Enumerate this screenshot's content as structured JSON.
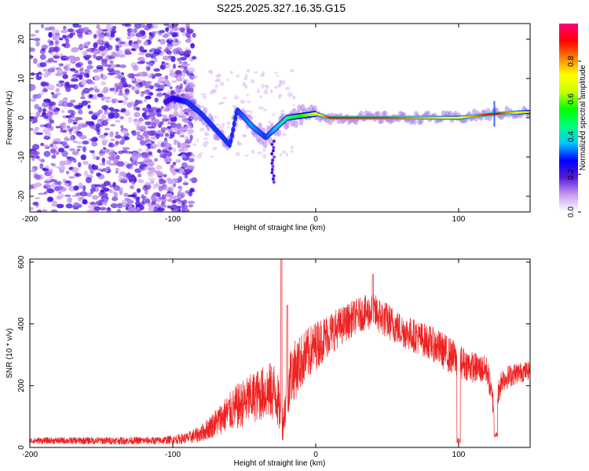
{
  "title": "S225.2025.327.16.35.G15",
  "chart_data": [
    {
      "type": "heatmap",
      "name": "spectrogram",
      "xlabel": "Height of straight line (km)",
      "ylabel": "Frequency (Hz)",
      "xlim": [
        -200,
        150
      ],
      "ylim": [
        -24,
        24
      ],
      "xticks": [
        -200,
        -100,
        0,
        100
      ],
      "xtick_labels": [
        "-200",
        "-100",
        "0",
        "100"
      ],
      "yticks": [
        -20,
        -10,
        0,
        10,
        20
      ],
      "ytick_labels": [
        "-20",
        "-10",
        "0",
        "10",
        "20"
      ],
      "colorbar": {
        "label": "Normalized spectral amplitude",
        "range": [
          0,
          1
        ],
        "ticks": [
          0.0,
          0.2,
          0.4,
          0.6,
          0.8
        ],
        "tick_labels": [
          "0.0",
          "0.2",
          "0.4",
          "0.6",
          "0.8"
        ],
        "colormap": [
          "#ffffff",
          "#c89cf0",
          "#5a1adc",
          "#0000ff",
          "#00c8ff",
          "#00ff80",
          "#00ff00",
          "#c8ff00",
          "#ffff00",
          "#ff8000",
          "#ff0000",
          "#ff0080"
        ]
      },
      "ridge": [
        {
          "x": -105,
          "y": 4,
          "amp": 0.2
        },
        {
          "x": -100,
          "y": 5,
          "amp": 0.25
        },
        {
          "x": -90,
          "y": 4,
          "amp": 0.3
        },
        {
          "x": -80,
          "y": 1,
          "amp": 0.3
        },
        {
          "x": -70,
          "y": -3,
          "amp": 0.3
        },
        {
          "x": -60,
          "y": -7,
          "amp": 0.3
        },
        {
          "x": -55,
          "y": 2,
          "amp": 0.3
        },
        {
          "x": -45,
          "y": -2,
          "amp": 0.35
        },
        {
          "x": -35,
          "y": -5,
          "amp": 0.3
        },
        {
          "x": -20,
          "y": 0,
          "amp": 0.45
        },
        {
          "x": -10,
          "y": 0.5,
          "amp": 0.55
        },
        {
          "x": 0,
          "y": 1,
          "amp": 0.65
        },
        {
          "x": 10,
          "y": 0,
          "amp": 0.9
        },
        {
          "x": 50,
          "y": 0,
          "amp": 0.88
        },
        {
          "x": 100,
          "y": 0,
          "amp": 0.7
        },
        {
          "x": 125,
          "y": 1,
          "amp": 0.95
        },
        {
          "x": 150,
          "y": 1.5,
          "amp": 0.6
        }
      ],
      "noise_region": {
        "x_from": -200,
        "x_to": -85,
        "level": "scattered low-amplitude purple noise"
      }
    },
    {
      "type": "line",
      "name": "snr",
      "xlabel": "Height of straight line (km)",
      "ylabel": "SNR (10 * v/v)",
      "xlim": [
        -200,
        150
      ],
      "ylim": [
        0,
        610
      ],
      "xticks": [
        -200,
        -100,
        0,
        100
      ],
      "xtick_labels": [
        "-200",
        "-100",
        "0",
        "100"
      ],
      "yticks": [
        0,
        200,
        400,
        600
      ],
      "ytick_labels": [
        "0",
        "200",
        "400",
        "600"
      ],
      "color": "#ee2222",
      "envelope": {
        "x": [
          -200,
          -150,
          -110,
          -100,
          -90,
          -80,
          -70,
          -62,
          -55,
          -45,
          -35,
          -28,
          -23,
          -18,
          -10,
          0,
          10,
          20,
          30,
          40,
          50,
          60,
          70,
          80,
          90,
          100,
          110,
          120,
          125,
          130,
          140,
          150
        ],
        "mean": [
          22,
          22,
          22,
          25,
          30,
          45,
          80,
          110,
          130,
          160,
          180,
          180,
          80,
          230,
          280,
          330,
          370,
          400,
          430,
          440,
          410,
          380,
          360,
          340,
          310,
          280,
          260,
          250,
          120,
          220,
          240,
          250
        ],
        "spread": [
          10,
          12,
          12,
          14,
          18,
          28,
          45,
          60,
          75,
          80,
          90,
          100,
          60,
          100,
          90,
          80,
          70,
          60,
          55,
          60,
          60,
          55,
          55,
          55,
          60,
          55,
          50,
          45,
          40,
          40,
          35,
          30
        ]
      },
      "dips": [
        {
          "x": 100,
          "y": 10
        },
        {
          "x": 126,
          "y": 30
        }
      ],
      "spikes": [
        {
          "x": -24,
          "y": 610
        },
        {
          "x": -20,
          "y": 460
        },
        {
          "x": 40,
          "y": 560
        }
      ]
    }
  ]
}
